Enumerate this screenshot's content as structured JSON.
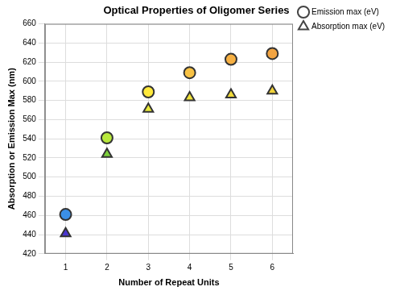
{
  "chart_data": {
    "type": "scatter",
    "title": "Optical Properties of Oligomer Series",
    "x_label": "Number of Repeat Units",
    "y_label": "Absorption or Emission Max (nm)",
    "xlim": [
      0.5,
      6.5
    ],
    "xticks": [
      1,
      2,
      3,
      4,
      5,
      6
    ],
    "ylim": [
      420,
      660
    ],
    "yticks": [
      420,
      440,
      460,
      480,
      500,
      520,
      540,
      560,
      580,
      600,
      620,
      640,
      660
    ],
    "grid": true,
    "legend": "right",
    "x": [
      1,
      2,
      3,
      4,
      5,
      6
    ],
    "series": [
      {
        "name": "Emission max (eV)",
        "marker": "circle",
        "values": [
          461,
          541,
          589,
          609,
          623,
          629
        ],
        "colors": [
          "#3b8fe6",
          "#b8e83c",
          "#ffe93c",
          "#f8c244",
          "#f6b043",
          "#f2a442"
        ]
      },
      {
        "name": "Absorption max (eV)",
        "marker": "triangle",
        "values": [
          441,
          524,
          571,
          583,
          586,
          590
        ],
        "colors": [
          "#4a36d0",
          "#7ccf3a",
          "#e8e83a",
          "#f0e23a",
          "#f0da3a",
          "#f0d23a"
        ]
      }
    ]
  }
}
